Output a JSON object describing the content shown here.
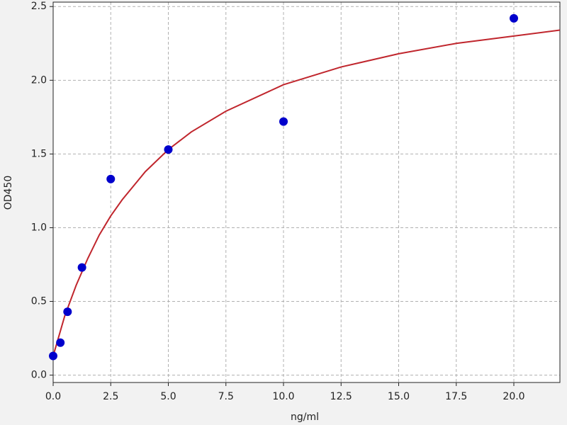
{
  "chart_data": {
    "type": "scatter",
    "xlabel": "ng/ml",
    "ylabel": "OD450",
    "xlim": [
      0,
      22
    ],
    "ylim": [
      -0.05,
      2.53
    ],
    "xticks": [
      {
        "value": 0,
        "label": "0.0"
      },
      {
        "value": 2.5,
        "label": "2.5"
      },
      {
        "value": 5,
        "label": "5.0"
      },
      {
        "value": 7.5,
        "label": "7.5"
      },
      {
        "value": 10,
        "label": "10.0"
      },
      {
        "value": 12.5,
        "label": "12.5"
      },
      {
        "value": 15,
        "label": "15.0"
      },
      {
        "value": 17.5,
        "label": "17.5"
      },
      {
        "value": 20,
        "label": "20.0"
      }
    ],
    "yticks": [
      {
        "value": 0,
        "label": "0.0"
      },
      {
        "value": 0.5,
        "label": "0.5"
      },
      {
        "value": 1,
        "label": "1.0"
      },
      {
        "value": 1.5,
        "label": "1.5"
      },
      {
        "value": 2,
        "label": "2.0"
      },
      {
        "value": 2.5,
        "label": "2.5"
      }
    ],
    "grid": true,
    "series": [
      {
        "type": "line",
        "color": "#c0262d",
        "x": [
          0,
          0.5,
          1,
          1.5,
          2,
          2.5,
          3,
          4,
          5,
          6,
          7.5,
          10,
          12.5,
          15,
          17.5,
          20,
          22
        ],
        "values": [
          0.13,
          0.4,
          0.61,
          0.79,
          0.95,
          1.08,
          1.19,
          1.38,
          1.53,
          1.65,
          1.79,
          1.97,
          2.09,
          2.18,
          2.25,
          2.3,
          2.34
        ]
      },
      {
        "type": "scatter",
        "color": "#0000cc",
        "x": [
          0,
          0.3125,
          0.625,
          1.25,
          2.5,
          5,
          10,
          20
        ],
        "values": [
          0.13,
          0.22,
          0.43,
          0.73,
          1.33,
          1.53,
          1.72,
          2.42
        ]
      }
    ]
  }
}
